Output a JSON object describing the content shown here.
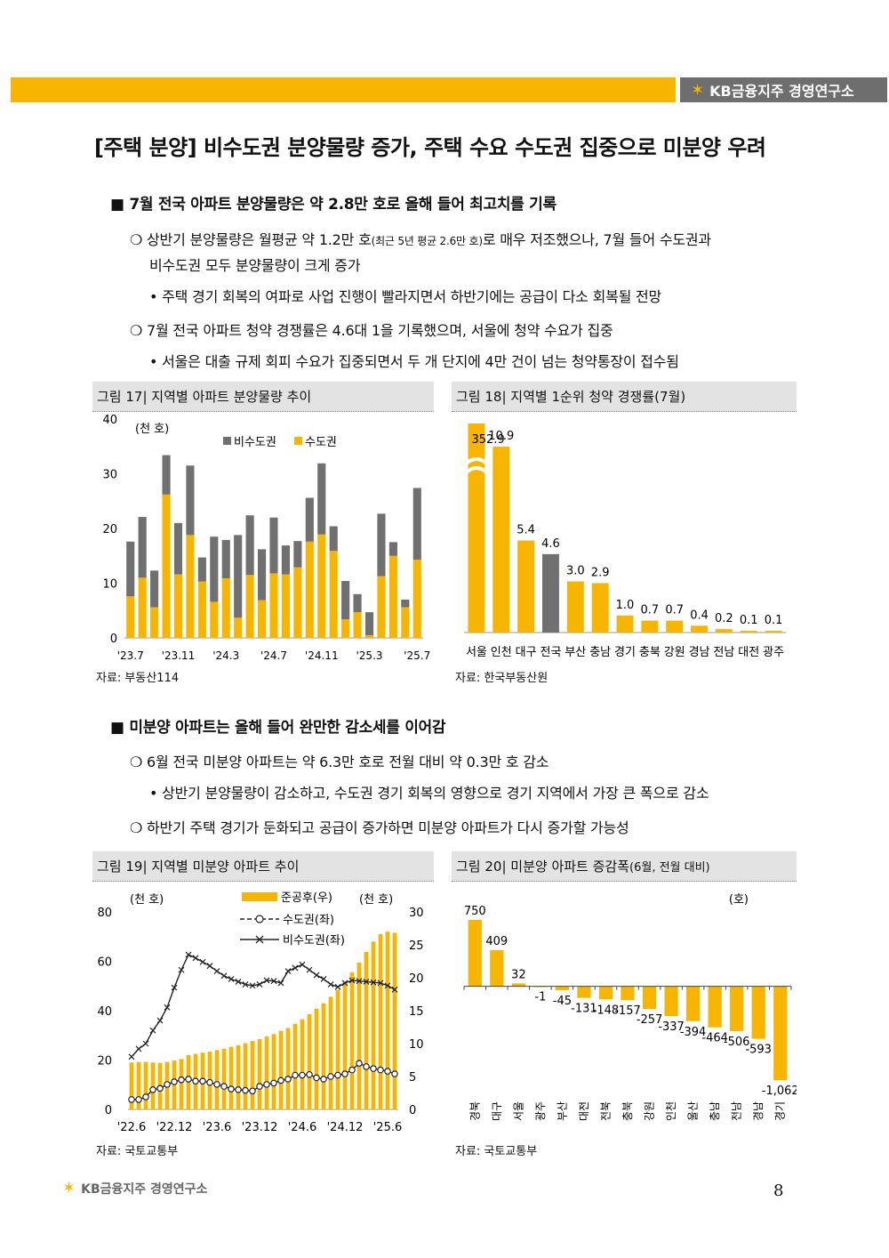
{
  "header": {
    "brand": "KB금융지주 경영연구소"
  },
  "title": "[주택 분양] 비수도권 분양물량 증가, 주택 수요 수도권 집중으로 미분양 우려",
  "section1": {
    "heading": "7월 전국 아파트 분양물량은 약 2.8만 호로 올해 들어 최고치를 기록",
    "b1_main": "상반기 분양물량은 월평균 약 1.2만 호",
    "b1_small": "(최근 5년 평균 2.6만 호)",
    "b1_rest": "로 매우 저조했으나, 7월 들어 수도권과",
    "b1_line2": "비수도권 모두 분양물량이 크게 증가",
    "b1_sub": "• 주택 경기 회복의 여파로 사업 진행이 빨라지면서 하반기에는 공급이 다소 회복될 전망",
    "b2": "7월 전국 아파트 청약 경쟁률은 4.6대 1을 기록했으며, 서울에 청약 수요가 집중",
    "b2_sub": "• 서울은 대출 규제 회피 수요가 집중되면서 두 개 단지에 4만 건이 넘는 청약통장이 접수됨"
  },
  "section2": {
    "heading": "미분양 아파트는 올해 들어 완만한 감소세를 이어감",
    "b1": "6월 전국 미분양 아파트는 약 6.3만 호로 전월 대비 약 0.3만 호 감소",
    "b1_sub": "• 상반기 분양물량이 감소하고, 수도권 경기 회복의 영향으로 경기 지역에서 가장 큰 폭으로 감소",
    "b2": "하반기 주택 경기가 둔화되고 공급이 증가하면 미분양 아파트가 다시 증가할 가능성"
  },
  "fig17": {
    "title": "그림 17| 지역별 아파트 분양물량 추이",
    "source": "자료: 부동산114"
  },
  "fig18": {
    "title": "그림 18| 지역별 1순위 청약 경쟁률(7월)",
    "source": "자료: 한국부동산원"
  },
  "fig19": {
    "title": "그림 19| 지역별 미분양 아파트 추이",
    "source": "자료: 국토교통부"
  },
  "fig20": {
    "title_main": "그림 20| 미분양 아파트 증감폭",
    "title_small": "(6월, 전월 대비)",
    "source": "자료: 국토교통부"
  },
  "footer": {
    "brand": "KB금융지주 경영연구소",
    "page": "8"
  },
  "colors": {
    "accent": "#f7b500",
    "gray": "#707070",
    "accent_stroke": "#e0a400"
  },
  "chart_data": [
    {
      "id": "fig17",
      "type": "bar",
      "stacked": true,
      "unit_label": "(천 호)",
      "ylim": [
        0,
        40
      ],
      "yticks": [
        0,
        10,
        20,
        30,
        40
      ],
      "legend": "top",
      "tick_labels": [
        "'23.7",
        "'23.11",
        "'24.3",
        "'24.7",
        "'24.11",
        "'25.3",
        "'25.7"
      ],
      "tick_every": 4,
      "series": [
        {
          "name": "수도권",
          "color": "#f7b500",
          "values": [
            7.6,
            11.0,
            5.6,
            26.2,
            11.6,
            18.8,
            10.3,
            6.6,
            10.9,
            3.7,
            11.5,
            6.9,
            11.8,
            11.6,
            12.9,
            17.6,
            18.9,
            15.9,
            3.4,
            4.7,
            0.5,
            11.3,
            15.0,
            5.6,
            14.3
          ]
        },
        {
          "name": "비수도권",
          "color": "#707070",
          "values": [
            10.0,
            11.1,
            6.7,
            7.2,
            9.4,
            12.7,
            4.4,
            11.9,
            7.0,
            15.1,
            10.9,
            9.3,
            10.2,
            5.3,
            4.8,
            8.0,
            13.0,
            4.5,
            7.0,
            3.3,
            4.2,
            11.4,
            2.5,
            1.4,
            13.1
          ]
        }
      ]
    },
    {
      "id": "fig18",
      "type": "bar",
      "ylim": [
        0,
        12
      ],
      "axis_break": true,
      "categories": [
        "서울",
        "인천",
        "대구",
        "전국",
        "부산",
        "충남",
        "경기",
        "충북",
        "강원",
        "경남",
        "전남",
        "대전",
        "광주"
      ],
      "values": [
        352.9,
        10.9,
        5.4,
        4.6,
        3.0,
        2.9,
        1.0,
        0.7,
        0.7,
        0.4,
        0.2,
        0.1,
        0.1
      ],
      "value_labels": [
        "352.9",
        "10.9",
        "5.4",
        "4.6",
        "3.0",
        "2.9",
        "1.0",
        "0.7",
        "0.7",
        "0.4",
        "0.2",
        "0.1",
        "0.1"
      ],
      "highlight": "전국"
    },
    {
      "id": "fig19",
      "type": "bar+line",
      "left_unit": "(천 호)",
      "right_unit": "(천 호)",
      "left_ylim": [
        0,
        30
      ],
      "left_yticks": [
        0,
        5,
        10,
        15,
        20,
        25,
        30
      ],
      "right_ylim": [
        0,
        80
      ],
      "right_yticks": [
        0,
        20,
        40,
        60,
        80
      ],
      "tick_labels": [
        "'22.6",
        "'22.12",
        "'23.6",
        "'23.12",
        "'24.6",
        "'24.12",
        "'25.6"
      ],
      "tick_every": 6,
      "series": [
        {
          "name": "준공후(우)",
          "kind": "bar",
          "axis": "right",
          "values": [
            19.0,
            19.2,
            19.2,
            19.0,
            18.8,
            19.2,
            19.8,
            20.4,
            22.0,
            22.5,
            23.0,
            23.4,
            24.0,
            24.6,
            25.3,
            26.0,
            26.8,
            27.7,
            28.5,
            29.5,
            30.5,
            31.8,
            33.0,
            34.7,
            36.5,
            38.6,
            40.8,
            43.0,
            45.6,
            48.5,
            51.8,
            55.5,
            59.5,
            63.8,
            68.0,
            71.0,
            72.0,
            71.5
          ]
        },
        {
          "name": "수도권(좌)",
          "kind": "line",
          "axis": "left",
          "marker": "circle",
          "values": [
            1.5,
            1.5,
            1.9,
            3.0,
            3.2,
            3.8,
            4.2,
            4.5,
            4.6,
            4.3,
            4.3,
            4.1,
            3.8,
            3.5,
            3.1,
            3.0,
            2.9,
            2.8,
            3.5,
            3.8,
            4.0,
            4.4,
            4.6,
            5.2,
            5.2,
            5.3,
            4.8,
            4.6,
            5.0,
            5.2,
            5.4,
            6.0,
            7.0,
            6.5,
            6.2,
            6.0,
            5.8,
            5.4
          ]
        },
        {
          "name": "비수도권(좌)",
          "kind": "line",
          "axis": "left",
          "marker": "x",
          "values": [
            8.0,
            9.2,
            10.0,
            12.0,
            13.5,
            15.5,
            18.5,
            21.2,
            23.5,
            23.0,
            22.4,
            21.8,
            21.0,
            20.3,
            19.8,
            19.4,
            19.0,
            18.8,
            19.0,
            19.6,
            19.5,
            19.2,
            21.0,
            21.5,
            22.0,
            21.2,
            20.4,
            19.8,
            19.0,
            18.6,
            19.2,
            19.6,
            19.5,
            19.4,
            19.3,
            19.2,
            18.8,
            18.2
          ]
        }
      ]
    },
    {
      "id": "fig20",
      "type": "bar",
      "unit_label": "(호)",
      "categories": [
        "경북",
        "대구",
        "서울",
        "광주",
        "부산",
        "대전",
        "전북",
        "충북",
        "강원",
        "인천",
        "울산",
        "충남",
        "전남",
        "경남",
        "경기"
      ],
      "values": [
        750,
        409,
        32,
        -1,
        -45,
        -131,
        -148,
        -157,
        -257,
        -337,
        -394,
        -464,
        -506,
        -593,
        -1062
      ],
      "value_labels": [
        "750",
        "409",
        "32",
        "-1",
        "-45",
        "-131",
        "-148",
        "-157",
        "-257",
        "-337",
        "-394",
        "-464",
        "-506",
        "-593",
        "-1,062"
      ],
      "ylim": [
        -1150,
        820
      ]
    }
  ]
}
